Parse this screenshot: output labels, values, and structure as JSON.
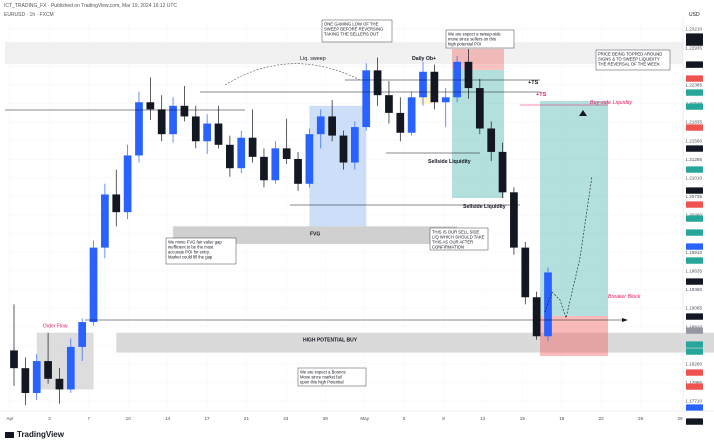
{
  "header": {
    "line1": "ICT_TRADING_FX · Published on TradingView.com, Mar 19, 2024 16:12 UTC",
    "line2": "EURUSD · 1h · FXCM",
    "currency": "USD"
  },
  "brand": {
    "label": "TradingView"
  },
  "chart_data": {
    "type": "candlestick",
    "title": "",
    "xlabel": "",
    "ylabel": "",
    "x_tick_labels": [
      "Apr",
      "3",
      "7",
      "10",
      "14",
      "17",
      "21",
      "24",
      "28",
      "May",
      "5",
      "8",
      "12",
      "15",
      "19",
      "22",
      "26",
      "29"
    ],
    "y_tick_labels": [
      "1.23210",
      "1.22935",
      "1.22660",
      "1.22385",
      "1.22110",
      "1.21835",
      "1.21560",
      "1.21285",
      "1.21010",
      "1.20735",
      "1.20460",
      "1.20185",
      "1.19910",
      "1.19635",
      "1.19360",
      "1.19085",
      "1.18810",
      "1.18535",
      "1.18260",
      "1.17985",
      "1.17710"
    ],
    "ylim": [
      1.1771,
      1.2321
    ],
    "candles": [
      {
        "o": 1.1855,
        "h": 1.192,
        "l": 1.1805,
        "c": 1.183
      },
      {
        "o": 1.183,
        "h": 1.1845,
        "l": 1.1778,
        "c": 1.1795
      },
      {
        "o": 1.1795,
        "h": 1.185,
        "l": 1.1785,
        "c": 1.184
      },
      {
        "o": 1.184,
        "h": 1.188,
        "l": 1.1808,
        "c": 1.1815
      },
      {
        "o": 1.1815,
        "h": 1.183,
        "l": 1.178,
        "c": 1.18
      },
      {
        "o": 1.18,
        "h": 1.1872,
        "l": 1.1795,
        "c": 1.186
      },
      {
        "o": 1.186,
        "h": 1.19,
        "l": 1.184,
        "c": 1.1895
      },
      {
        "o": 1.1895,
        "h": 1.201,
        "l": 1.189,
        "c": 1.2
      },
      {
        "o": 1.2,
        "h": 1.209,
        "l": 1.1985,
        "c": 1.2075
      },
      {
        "o": 1.2075,
        "h": 1.211,
        "l": 1.203,
        "c": 1.205
      },
      {
        "o": 1.205,
        "h": 1.2145,
        "l": 1.204,
        "c": 1.213
      },
      {
        "o": 1.213,
        "h": 1.222,
        "l": 1.212,
        "c": 1.2205
      },
      {
        "o": 1.2205,
        "h": 1.224,
        "l": 1.218,
        "c": 1.2195
      },
      {
        "o": 1.2195,
        "h": 1.2215,
        "l": 1.215,
        "c": 1.216
      },
      {
        "o": 1.216,
        "h": 1.2212,
        "l": 1.2148,
        "c": 1.22
      },
      {
        "o": 1.22,
        "h": 1.2228,
        "l": 1.2178,
        "c": 1.2185
      },
      {
        "o": 1.2185,
        "h": 1.22,
        "l": 1.214,
        "c": 1.215
      },
      {
        "o": 1.215,
        "h": 1.2188,
        "l": 1.2132,
        "c": 1.2175
      },
      {
        "o": 1.2175,
        "h": 1.22,
        "l": 1.214,
        "c": 1.2145
      },
      {
        "o": 1.2145,
        "h": 1.2158,
        "l": 1.21,
        "c": 1.2112
      },
      {
        "o": 1.2112,
        "h": 1.2165,
        "l": 1.2105,
        "c": 1.2155
      },
      {
        "o": 1.2155,
        "h": 1.2195,
        "l": 1.212,
        "c": 1.2128
      },
      {
        "o": 1.2128,
        "h": 1.214,
        "l": 1.2085,
        "c": 1.2095
      },
      {
        "o": 1.2095,
        "h": 1.215,
        "l": 1.209,
        "c": 1.214
      },
      {
        "o": 1.214,
        "h": 1.2182,
        "l": 1.2118,
        "c": 1.2125
      },
      {
        "o": 1.2125,
        "h": 1.2135,
        "l": 1.208,
        "c": 1.209
      },
      {
        "o": 1.209,
        "h": 1.2168,
        "l": 1.2085,
        "c": 1.216
      },
      {
        "o": 1.216,
        "h": 1.2195,
        "l": 1.214,
        "c": 1.2185
      },
      {
        "o": 1.2185,
        "h": 1.2208,
        "l": 1.215,
        "c": 1.2158
      },
      {
        "o": 1.2158,
        "h": 1.2165,
        "l": 1.211,
        "c": 1.212
      },
      {
        "o": 1.212,
        "h": 1.2178,
        "l": 1.211,
        "c": 1.217
      },
      {
        "o": 1.217,
        "h": 1.226,
        "l": 1.2165,
        "c": 1.225
      },
      {
        "o": 1.225,
        "h": 1.2268,
        "l": 1.22,
        "c": 1.2215
      },
      {
        "o": 1.2215,
        "h": 1.2235,
        "l": 1.2175,
        "c": 1.219
      },
      {
        "o": 1.219,
        "h": 1.2212,
        "l": 1.215,
        "c": 1.2162
      },
      {
        "o": 1.2162,
        "h": 1.222,
        "l": 1.2158,
        "c": 1.2212
      },
      {
        "o": 1.2212,
        "h": 1.2262,
        "l": 1.22,
        "c": 1.2248
      },
      {
        "o": 1.2248,
        "h": 1.2258,
        "l": 1.2195,
        "c": 1.2205
      },
      {
        "o": 1.2205,
        "h": 1.2225,
        "l": 1.217,
        "c": 1.2212
      },
      {
        "o": 1.2212,
        "h": 1.227,
        "l": 1.2205,
        "c": 1.2262
      },
      {
        "o": 1.2262,
        "h": 1.228,
        "l": 1.221,
        "c": 1.2225
      },
      {
        "o": 1.2225,
        "h": 1.2238,
        "l": 1.216,
        "c": 1.2168
      },
      {
        "o": 1.2168,
        "h": 1.2178,
        "l": 1.2122,
        "c": 1.2135
      },
      {
        "o": 1.2135,
        "h": 1.2148,
        "l": 1.207,
        "c": 1.2078
      },
      {
        "o": 1.2078,
        "h": 1.2085,
        "l": 1.199,
        "c": 1.2
      },
      {
        "o": 1.2,
        "h": 1.2008,
        "l": 1.192,
        "c": 1.193
      },
      {
        "o": 1.193,
        "h": 1.1938,
        "l": 1.187,
        "c": 1.1875
      },
      {
        "o": 1.1875,
        "h": 1.1972,
        "l": 1.1868,
        "c": 1.1965
      }
    ],
    "zones": [
      {
        "label": "FVG",
        "kind": "fair-value-gap",
        "y_top": 1.203,
        "y_bottom": 1.2005
      },
      {
        "label": "HIGH POTENTIAL BUY",
        "kind": "demand",
        "y_top": 1.188,
        "y_bottom": 1.1852
      },
      {
        "label": "Order Flow",
        "kind": "origin",
        "y_top": 1.188,
        "y_bottom": 1.18
      }
    ],
    "levels": [
      {
        "label": "Liq. sweep",
        "kind": "swept-high"
      },
      {
        "label": "Daily Ob+",
        "kind": "order-block"
      },
      {
        "label": "Buy-side Liquidity",
        "kind": "buyside"
      },
      {
        "label": "Sellside Liquidity",
        "kind": "sellside"
      },
      {
        "label": "Sellside Liquidity",
        "kind": "sellside"
      },
      {
        "label": "Breaker Block",
        "kind": "breaker"
      }
    ],
    "position": {
      "type": "long",
      "target_label": "Buy-side Liquidity",
      "tp_labels": [
        "+TS",
        "+TS"
      ]
    },
    "notes": [
      "ONE GAMING LOW OF THE SWEEP BEFORE REVERSING TAKING THE SELLERS OUT",
      "We are expect a sweep-side move since sellers on this high potential POI",
      "PRICE BEING TOPPED AROUND SIGNS & TO SWEEP LIQUIDITY THE REVERSAL OF THE WEEK",
      "We move FVG fair value gap inefficient to be the most accurate POI for entry. Market could fill the gap for this continuous movement",
      "THIS IS OUR SELL SIDE LIQ WHICH SHOULD TAKE THIS AS OUR AFTER CONFIRMATION",
      "We are expect a Bounce Move since market fail upon this high Potential POI"
    ]
  },
  "colors": {
    "up": "#2962ff",
    "down": "#131722",
    "fvg_zone": "#c8c8c8",
    "buy_zone": "#d6d6d6",
    "target_zone": "#26a69a",
    "stop_zone": "#ef5350",
    "blue_box": "#90b8f0",
    "annotation_red": "#e91e63"
  }
}
